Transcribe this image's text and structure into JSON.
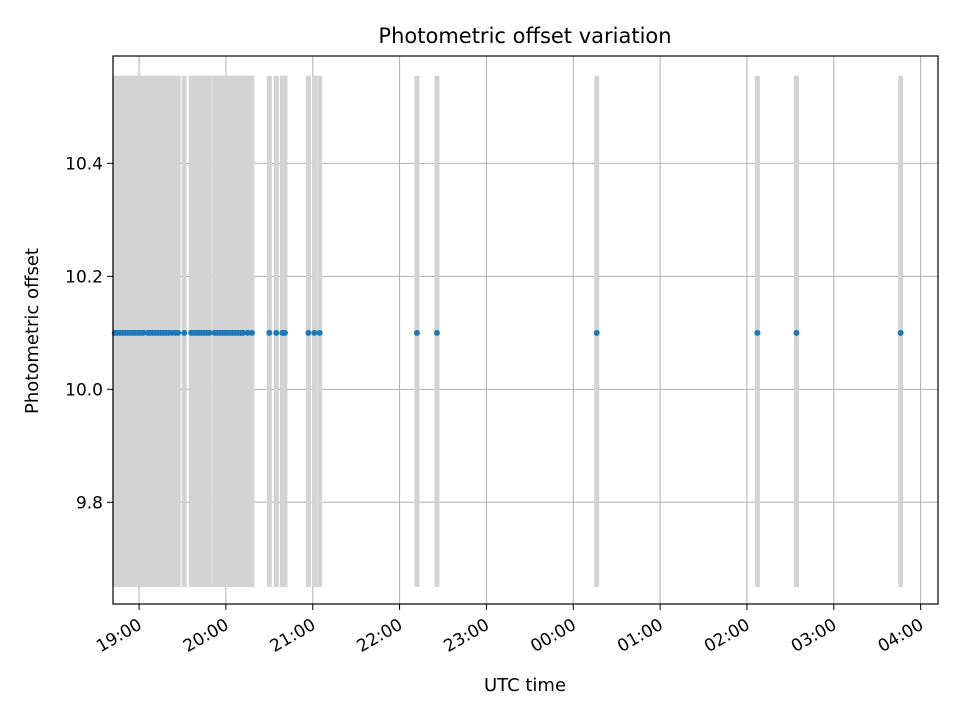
{
  "chart_data": {
    "type": "scatter",
    "title": "Photometric offset variation",
    "xlabel": "UTC time",
    "ylabel": "Photometric offset",
    "x_ticks": [
      "19:00",
      "20:00",
      "21:00",
      "22:00",
      "23:00",
      "00:00",
      "01:00",
      "02:00",
      "03:00",
      "04:00"
    ],
    "x_tick_hours": [
      19,
      20,
      21,
      22,
      23,
      24,
      25,
      26,
      27,
      28
    ],
    "y_ticks": [
      "9.8",
      "10.0",
      "10.2",
      "10.4"
    ],
    "y_tick_values": [
      9.8,
      10.0,
      10.2,
      10.4
    ],
    "xlim_hours": [
      18.7,
      28.2
    ],
    "ylim": [
      9.62,
      10.59
    ],
    "grid": true,
    "point_color": "#1f77b4",
    "errorbar_color": "#d3d3d3",
    "series": [
      {
        "y_value": 10.1,
        "error_low": 9.65,
        "error_high": 10.555,
        "x_hours": [
          18.72,
          18.75,
          18.78,
          18.81,
          18.84,
          18.87,
          18.9,
          18.93,
          18.96,
          18.99,
          19.02,
          19.05,
          19.1,
          19.13,
          19.16,
          19.19,
          19.22,
          19.25,
          19.28,
          19.31,
          19.34,
          19.38,
          19.42,
          19.45,
          19.52,
          19.6,
          19.63,
          19.66,
          19.69,
          19.72,
          19.75,
          19.78,
          19.81,
          19.87,
          19.9,
          19.93,
          19.96,
          19.99,
          20.02,
          20.05,
          20.08,
          20.11,
          20.14,
          20.17,
          20.2,
          20.25,
          20.3,
          20.5,
          20.58,
          20.65,
          20.68,
          20.95,
          21.02,
          21.08,
          22.2,
          22.43,
          24.27,
          26.12,
          26.57,
          27.77
        ]
      }
    ]
  }
}
